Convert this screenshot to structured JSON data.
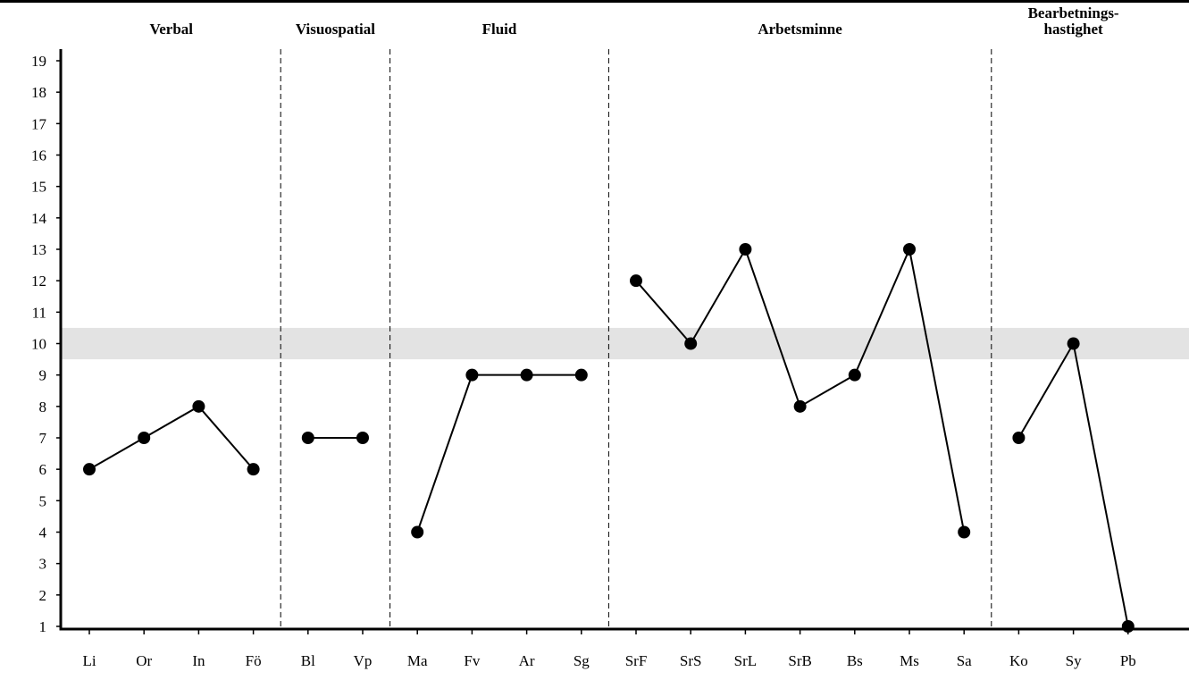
{
  "chart_data": {
    "type": "line",
    "ylim": [
      1,
      19
    ],
    "yticks": [
      1,
      2,
      3,
      4,
      5,
      6,
      7,
      8,
      9,
      10,
      11,
      12,
      13,
      14,
      15,
      16,
      17,
      18,
      19
    ],
    "categories": [
      "Li",
      "Or",
      "In",
      "Fö",
      "Bl",
      "Vp",
      "Ma",
      "Fv",
      "Ar",
      "Sg",
      "SrF",
      "SrS",
      "SrL",
      "SrB",
      "Bs",
      "Ms",
      "Sa",
      "Ko",
      "Sy",
      "Pb"
    ],
    "groups": [
      {
        "name": "Verbal",
        "categories": [
          "Li",
          "Or",
          "In",
          "Fö"
        ],
        "values": [
          6,
          7,
          8,
          6
        ]
      },
      {
        "name": "Visuospatial",
        "categories": [
          "Bl",
          "Vp"
        ],
        "values": [
          7,
          7
        ]
      },
      {
        "name": "Fluid",
        "categories": [
          "Ma",
          "Fv",
          "Ar",
          "Sg"
        ],
        "values": [
          4,
          9,
          9,
          9
        ]
      },
      {
        "name": "Arbetsminne",
        "categories": [
          "SrF",
          "SrS",
          "SrL",
          "SrB",
          "Bs",
          "Ms",
          "Sa"
        ],
        "values": [
          12,
          10,
          13,
          8,
          9,
          13,
          4
        ]
      },
      {
        "name": "Bearbetnings-\nhastighet",
        "name_lines": [
          "Bearbetnings-",
          "hastighet"
        ],
        "categories": [
          "Ko",
          "Sy",
          "Pb"
        ],
        "values": [
          7,
          10,
          1
        ]
      }
    ],
    "reference_band": [
      9.5,
      10.5
    ],
    "grid": false,
    "colors": {
      "line": "#000000",
      "marker": "#000000",
      "band": "#e3e3e3",
      "axis": "#000000"
    }
  }
}
